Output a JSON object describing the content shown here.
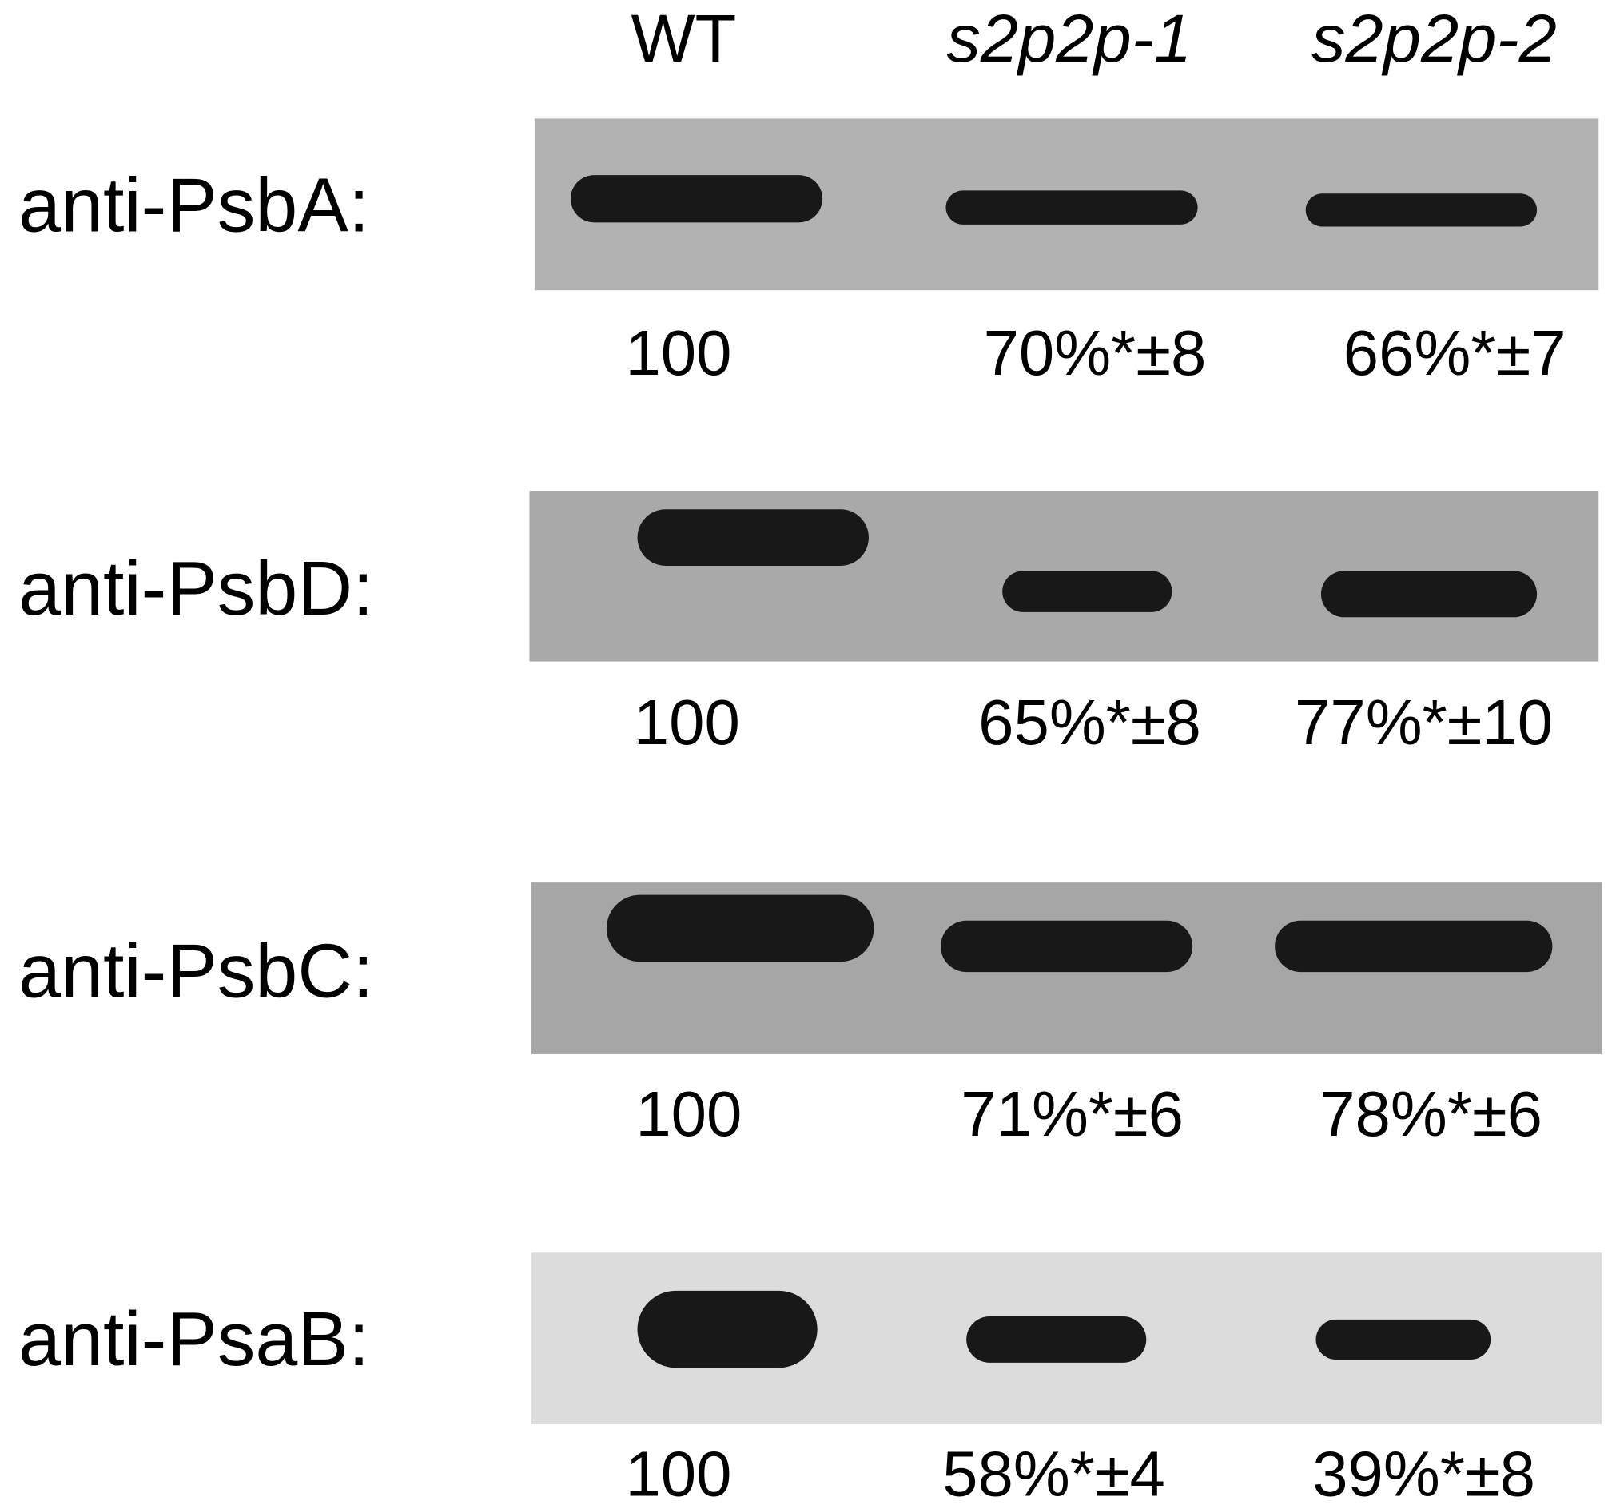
{
  "lanes": [
    "WT",
    "s2p2p-1",
    "s2p2p-2"
  ],
  "blots": [
    {
      "label": "anti-PsbA:",
      "quant": [
        "100",
        "70%*±8",
        "66%*±7"
      ]
    },
    {
      "label": "anti-PsbD:",
      "quant": [
        "100",
        "65%*±8",
        "77%*±10"
      ]
    },
    {
      "label": "anti-PsbC:",
      "quant": [
        "100",
        "71%*±6",
        "78%*±6"
      ]
    },
    {
      "label": "anti-PsaB:",
      "quant": [
        "100",
        "58%*±4",
        "39%*±8"
      ]
    }
  ]
}
